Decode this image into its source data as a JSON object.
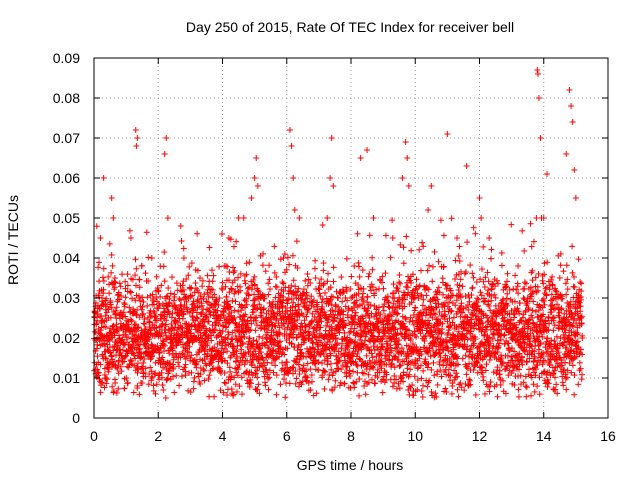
{
  "chart_data": {
    "type": "scatter",
    "title": "Day 250 of 2015, Rate Of TEC Index for receiver bell",
    "xlabel": "GPS time / hours",
    "ylabel": "ROTI / TECUs",
    "xlim": [
      0,
      16
    ],
    "ylim": [
      0,
      0.09
    ],
    "xticks": [
      0,
      2,
      4,
      6,
      8,
      10,
      12,
      14,
      16
    ],
    "yticks": [
      0,
      0.01,
      0.02,
      0.03,
      0.04,
      0.05,
      0.06,
      0.07,
      0.08,
      0.09
    ],
    "xtick_labels": [
      "0",
      "2",
      "4",
      "6",
      "8",
      "10",
      "12",
      "14",
      "16"
    ],
    "ytick_labels": [
      "0",
      "0.01",
      "0.02",
      "0.03",
      "0.04",
      "0.05",
      "0.06",
      "0.07",
      "0.08",
      "0.09"
    ],
    "grid": true,
    "marker": "+",
    "series": [
      {
        "name": "ROTI",
        "color": "#ff0000",
        "x": [
          0.1,
          0.2,
          0.25,
          0.3,
          0.35,
          0.45,
          0.55,
          0.6,
          0.65,
          0.8,
          1.0,
          1.15,
          1.3,
          1.32,
          1.35,
          1.4,
          1.6,
          1.8,
          2.2,
          2.25,
          2.3,
          2.5,
          2.7,
          2.8,
          3.0,
          3.3,
          3.6,
          3.9,
          4.2,
          4.3,
          4.6,
          4.9,
          5.0,
          5.05,
          5.1,
          5.2,
          5.5,
          5.9,
          6.1,
          6.15,
          6.2,
          6.25,
          6.3,
          6.6,
          6.9,
          7.2,
          7.35,
          7.4,
          7.45,
          7.6,
          7.8,
          8.1,
          8.3,
          8.5,
          8.7,
          8.9,
          9.3,
          9.6,
          9.7,
          9.75,
          9.8,
          10.1,
          10.4,
          10.5,
          10.7,
          11.0,
          11.1,
          11.3,
          11.6,
          11.8,
          12.0,
          12.05,
          12.1,
          12.3,
          12.6,
          12.9,
          13.2,
          13.5,
          13.8,
          13.82,
          13.85,
          13.9,
          14.0,
          14.1,
          14.3,
          14.5,
          14.7,
          14.8,
          14.85,
          14.9,
          14.95,
          15.0,
          15.1,
          15.2
        ],
        "y": [
          0.02,
          0.045,
          0.03,
          0.06,
          0.015,
          0.025,
          0.055,
          0.05,
          0.035,
          0.02,
          0.022,
          0.045,
          0.072,
          0.068,
          0.07,
          0.03,
          0.018,
          0.04,
          0.066,
          0.07,
          0.05,
          0.028,
          0.048,
          0.04,
          0.015,
          0.035,
          0.022,
          0.03,
          0.045,
          0.025,
          0.02,
          0.055,
          0.06,
          0.065,
          0.058,
          0.03,
          0.025,
          0.04,
          0.072,
          0.068,
          0.06,
          0.052,
          0.03,
          0.02,
          0.035,
          0.025,
          0.06,
          0.07,
          0.058,
          0.03,
          0.02,
          0.038,
          0.065,
          0.067,
          0.05,
          0.025,
          0.045,
          0.06,
          0.069,
          0.065,
          0.058,
          0.03,
          0.052,
          0.058,
          0.02,
          0.071,
          0.03,
          0.045,
          0.063,
          0.02,
          0.055,
          0.05,
          0.015,
          0.045,
          0.028,
          0.022,
          0.038,
          0.03,
          0.087,
          0.086,
          0.08,
          0.07,
          0.05,
          0.061,
          0.025,
          0.035,
          0.066,
          0.082,
          0.078,
          0.074,
          0.062,
          0.055,
          0.03,
          0.02
        ]
      }
    ]
  }
}
